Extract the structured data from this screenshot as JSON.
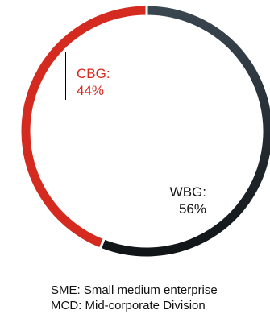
{
  "chart_data": {
    "type": "pie",
    "subtype": "donut",
    "title": "",
    "slices": [
      {
        "label": "WBG",
        "value": 56,
        "display_label": "WBG:",
        "display_value": "56%",
        "color": "#1c2328"
      },
      {
        "label": "CBG",
        "value": 44,
        "display_label": "CBG:",
        "display_value": "44%",
        "color": "#d42a1f"
      }
    ],
    "start": "top",
    "direction": "clockwise",
    "legend": "none"
  },
  "notes": [
    "SME: Small medium enterprise",
    "MCD: Mid-corporate Division"
  ],
  "colors": {
    "wbg_gradient_end": "#3a4650",
    "separator": "#ffffff"
  }
}
